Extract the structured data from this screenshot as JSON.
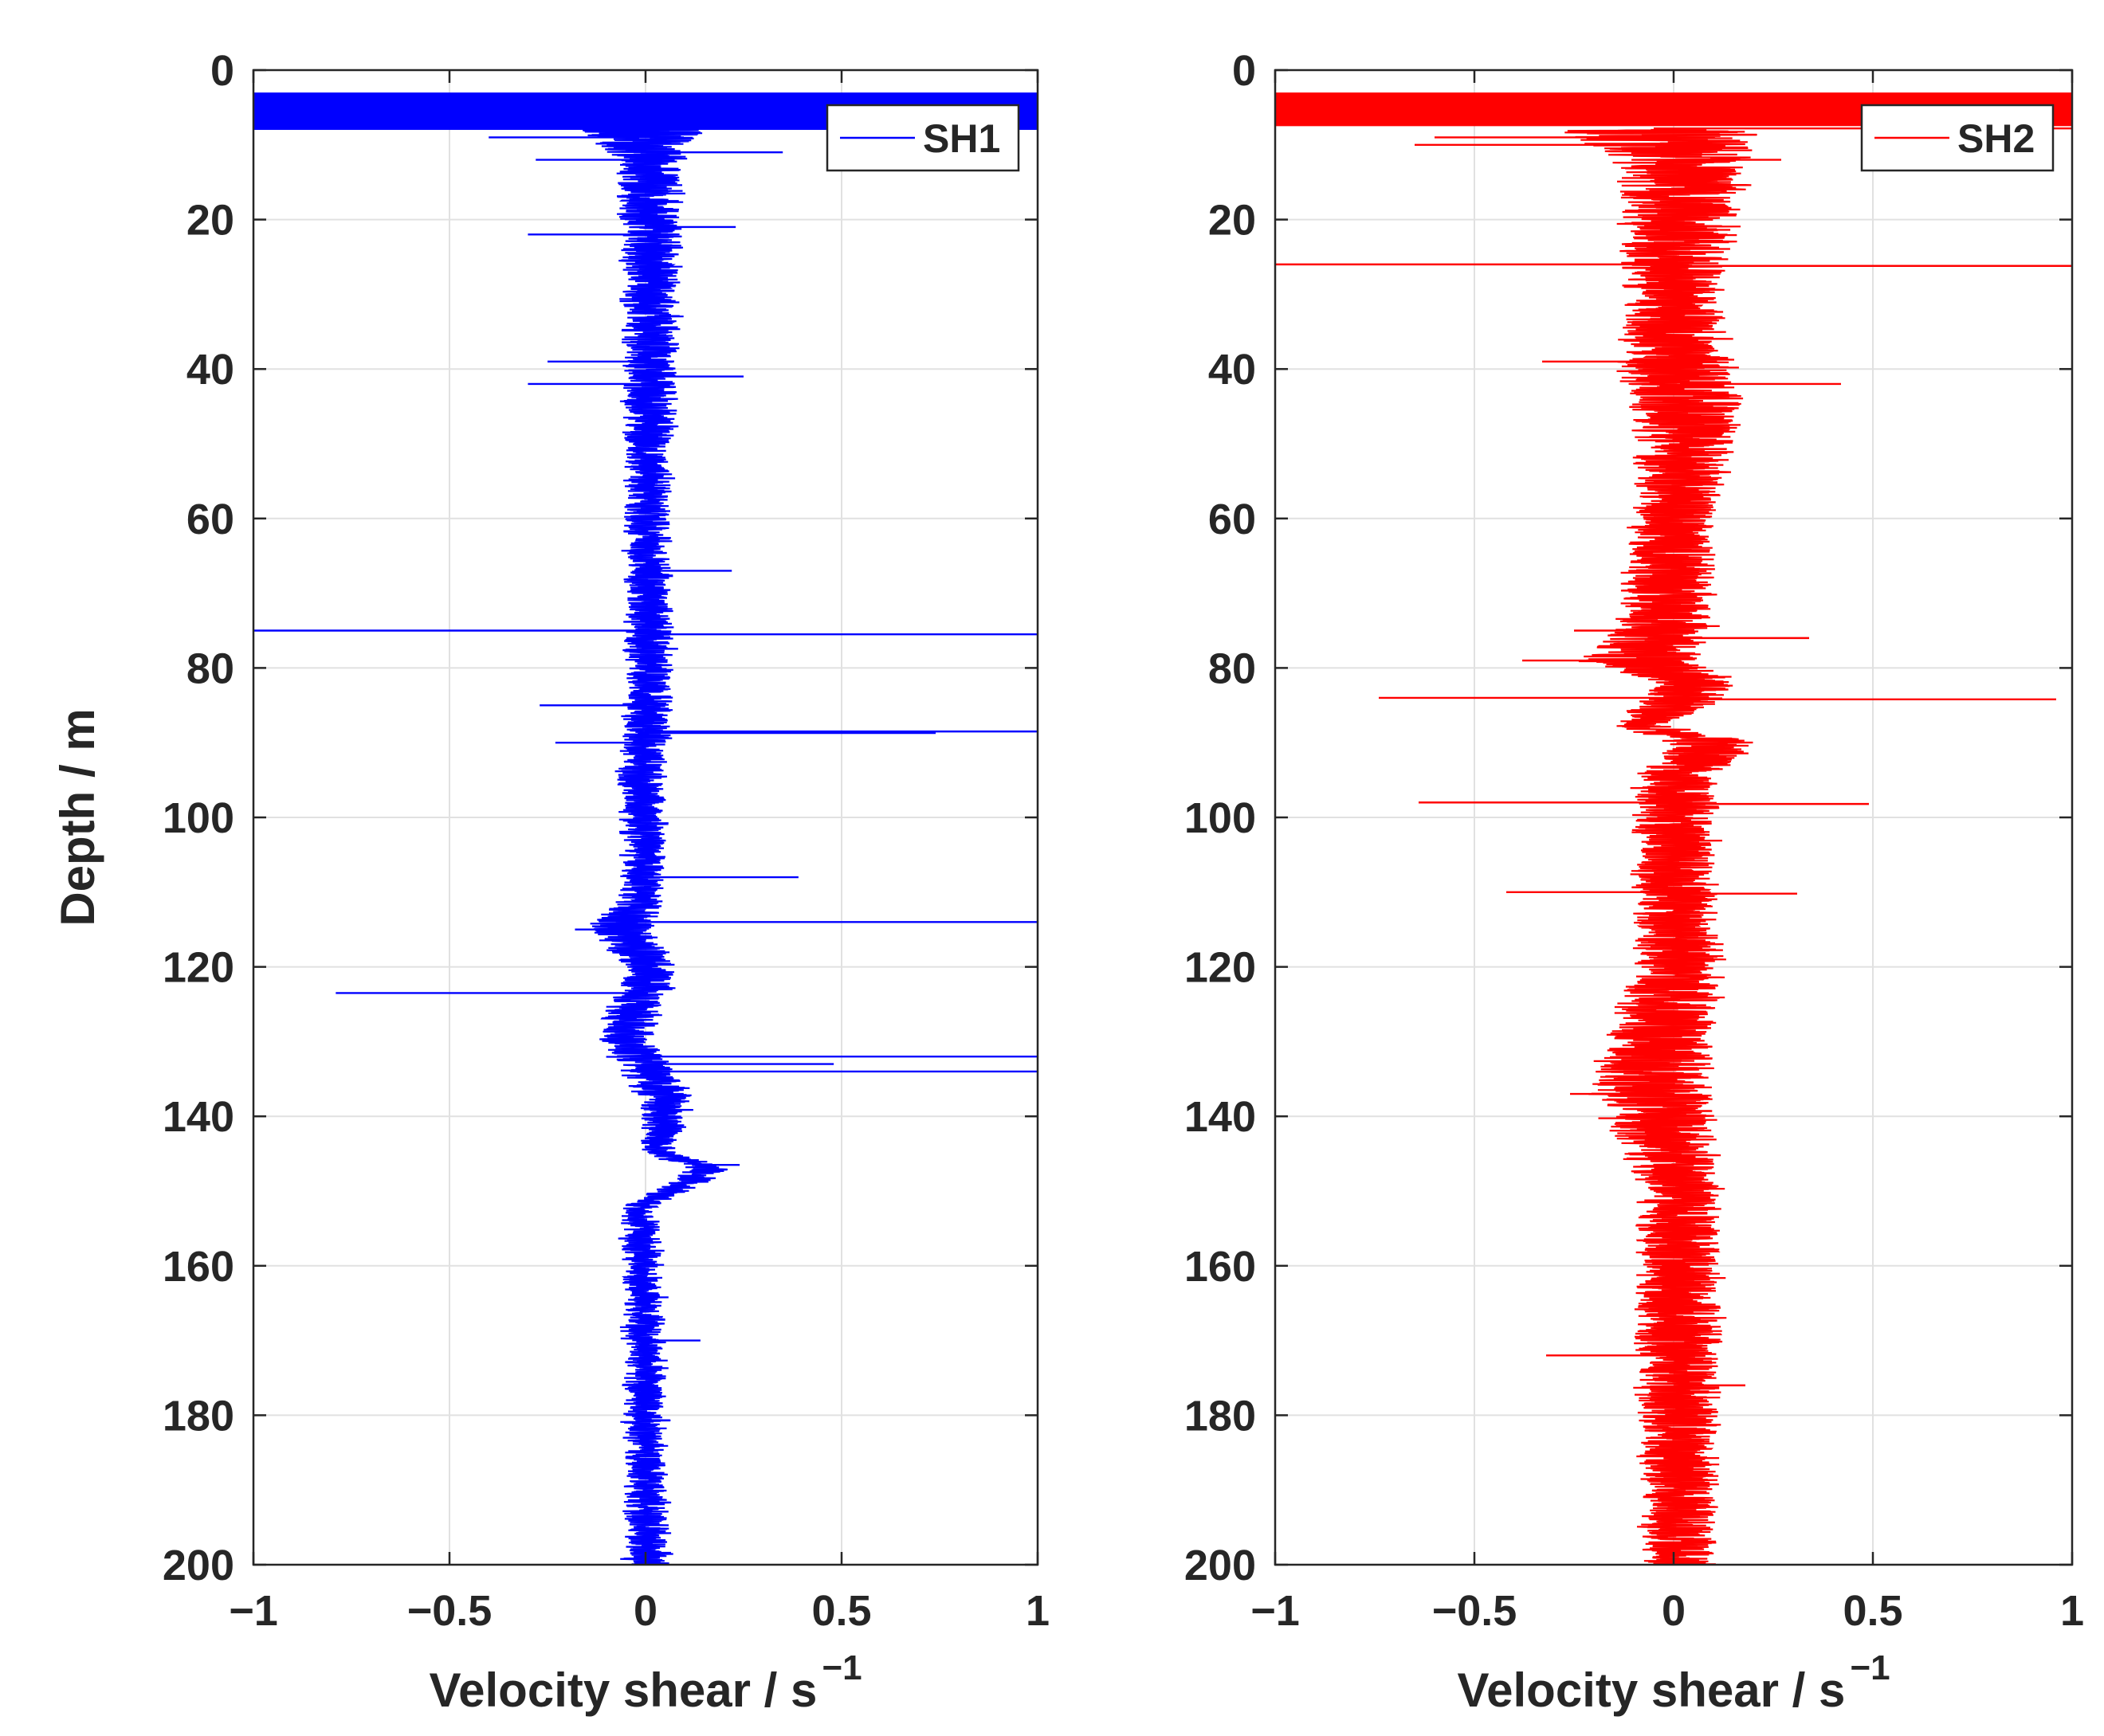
{
  "chart_data": [
    {
      "type": "line",
      "orientation": "vertical-profile",
      "title": "",
      "xlabel": "Velocity shear / s",
      "xlabel_superscript": "−1",
      "ylabel": "Depth / m",
      "xlim": [
        -1,
        1
      ],
      "ylim": [
        0,
        200
      ],
      "y_reversed": true,
      "grid": true,
      "legend_position": "top-right",
      "xticks": [
        -1,
        -0.5,
        0,
        0.5,
        1
      ],
      "xtick_labels": [
        "−1",
        "−0.5",
        "0",
        "0.5",
        "1"
      ],
      "yticks": [
        0,
        20,
        40,
        60,
        80,
        100,
        120,
        140,
        160,
        180,
        200
      ],
      "ytick_labels": [
        "0",
        "20",
        "40",
        "60",
        "80",
        "100",
        "120",
        "140",
        "160",
        "180",
        "200"
      ],
      "series": [
        {
          "name": "SH1",
          "color": "#0000ff",
          "noise_amplitude": 0.05,
          "saturated_range": [
            3,
            8
          ],
          "envelope": [
            {
              "depth": 8,
              "lo": -0.2,
              "hi": 0.15
            },
            {
              "depth": 12,
              "lo": -0.08,
              "hi": 0.1
            },
            {
              "depth": 20,
              "lo": -0.06,
              "hi": 0.09
            },
            {
              "depth": 40,
              "lo": -0.06,
              "hi": 0.08
            },
            {
              "depth": 60,
              "lo": -0.05,
              "hi": 0.06
            },
            {
              "depth": 80,
              "lo": -0.05,
              "hi": 0.07
            },
            {
              "depth": 95,
              "lo": -0.07,
              "hi": 0.05
            },
            {
              "depth": 110,
              "lo": -0.05,
              "hi": 0.05
            },
            {
              "depth": 115,
              "lo": -0.15,
              "hi": 0.02
            },
            {
              "depth": 120,
              "lo": -0.05,
              "hi": 0.08
            },
            {
              "depth": 130,
              "lo": -0.12,
              "hi": 0.02
            },
            {
              "depth": 137,
              "lo": -0.02,
              "hi": 0.12
            },
            {
              "depth": 145,
              "lo": 0.0,
              "hi": 0.07
            },
            {
              "depth": 147,
              "lo": 0.12,
              "hi": 0.22
            },
            {
              "depth": 152,
              "lo": -0.05,
              "hi": 0.03
            },
            {
              "depth": 200,
              "lo": -0.05,
              "hi": 0.06
            }
          ],
          "spikes": [
            {
              "depth": 9,
              "value": -0.4
            },
            {
              "depth": 11,
              "value": 0.35
            },
            {
              "depth": 12,
              "value": -0.28
            },
            {
              "depth": 21,
              "value": 0.23
            },
            {
              "depth": 22,
              "value": -0.3
            },
            {
              "depth": 39,
              "value": -0.25
            },
            {
              "depth": 41,
              "value": 0.25
            },
            {
              "depth": 42,
              "value": -0.3
            },
            {
              "depth": 67,
              "value": 0.22
            },
            {
              "depth": 75,
              "value": -1.0
            },
            {
              "depth": 75.5,
              "value": 1.0
            },
            {
              "depth": 85,
              "value": -0.27
            },
            {
              "depth": 88.5,
              "value": 1.0
            },
            {
              "depth": 88.7,
              "value": 0.74
            },
            {
              "depth": 90,
              "value": -0.23
            },
            {
              "depth": 108,
              "value": 0.39
            },
            {
              "depth": 114,
              "value": 1.0
            },
            {
              "depth": 115,
              "value": -0.18
            },
            {
              "depth": 123.5,
              "value": -0.79
            },
            {
              "depth": 132,
              "value": 1.0
            },
            {
              "depth": 133,
              "value": 0.48
            },
            {
              "depth": 134,
              "value": 1.0
            },
            {
              "depth": 146.5,
              "value": 0.24
            },
            {
              "depth": 170,
              "value": 0.14
            }
          ]
        },
        {
          "name": "SH2",
          "color": "#ff0000",
          "noise_amplitude": 0.065,
          "saturated_range": [
            3,
            7.5
          ],
          "envelope": [
            {
              "depth": 8,
              "lo": -0.3,
              "hi": 0.2
            },
            {
              "depth": 12,
              "lo": -0.15,
              "hi": 0.2
            },
            {
              "depth": 30,
              "lo": -0.12,
              "hi": 0.12
            },
            {
              "depth": 40,
              "lo": -0.15,
              "hi": 0.15
            },
            {
              "depth": 45,
              "lo": -0.1,
              "hi": 0.18
            },
            {
              "depth": 60,
              "lo": -0.1,
              "hi": 0.1
            },
            {
              "depth": 75,
              "lo": -0.15,
              "hi": 0.1
            },
            {
              "depth": 79,
              "lo": -0.25,
              "hi": 0.05
            },
            {
              "depth": 82,
              "lo": -0.05,
              "hi": 0.18
            },
            {
              "depth": 88,
              "lo": -0.15,
              "hi": 0.0
            },
            {
              "depth": 90,
              "lo": 0.0,
              "hi": 0.22
            },
            {
              "depth": 95,
              "lo": -0.1,
              "hi": 0.1
            },
            {
              "depth": 120,
              "lo": -0.1,
              "hi": 0.12
            },
            {
              "depth": 136,
              "lo": -0.22,
              "hi": 0.1
            },
            {
              "depth": 150,
              "lo": -0.08,
              "hi": 0.12
            },
            {
              "depth": 170,
              "lo": -0.1,
              "hi": 0.12
            },
            {
              "depth": 200,
              "lo": -0.07,
              "hi": 0.1
            }
          ],
          "spikes": [
            {
              "depth": 7.8,
              "value": 1.0
            },
            {
              "depth": 9,
              "value": -0.6
            },
            {
              "depth": 10,
              "value": -0.65
            },
            {
              "depth": 12,
              "value": 0.27
            },
            {
              "depth": 26,
              "value": -1.0
            },
            {
              "depth": 26.2,
              "value": 1.0
            },
            {
              "depth": 39,
              "value": -0.33
            },
            {
              "depth": 42,
              "value": 0.42
            },
            {
              "depth": 75,
              "value": -0.25
            },
            {
              "depth": 76,
              "value": 0.34
            },
            {
              "depth": 79,
              "value": -0.38
            },
            {
              "depth": 84,
              "value": -0.74
            },
            {
              "depth": 84.2,
              "value": 0.96
            },
            {
              "depth": 98,
              "value": -0.64
            },
            {
              "depth": 98.2,
              "value": 0.49
            },
            {
              "depth": 110,
              "value": -0.42
            },
            {
              "depth": 110.2,
              "value": 0.31
            },
            {
              "depth": 137,
              "value": -0.26
            },
            {
              "depth": 172,
              "value": -0.32
            },
            {
              "depth": 176,
              "value": 0.18
            }
          ]
        }
      ]
    }
  ]
}
